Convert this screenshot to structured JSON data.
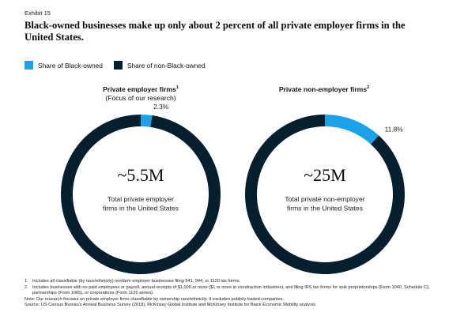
{
  "exhibit": "Exhibit 15",
  "title": "Black-owned businesses make up only about 2 percent of all private employer firms in the United States.",
  "legend": [
    {
      "label": "Share of Black-owned",
      "color": "#1aa3e8"
    },
    {
      "label": "Share of non-Black-owned",
      "color": "#061f2e"
    }
  ],
  "charts": [
    {
      "heading": "Private employer firms",
      "footnote_ref": "1",
      "subheading": "(Focus of our research)"
    },
    {
      "heading": "Private non-employer firms",
      "footnote_ref": "2",
      "subheading": ""
    }
  ],
  "chart_data": [
    {
      "type": "pie",
      "title": "Private employer firms",
      "labels": [
        "Share of Black-owned",
        "Share of non-Black-owned"
      ],
      "values": [
        2.3,
        97.7
      ],
      "value_label": "2.3%",
      "center_value": "~5.5M",
      "center_caption": [
        "Total private employer",
        "firms in the United States"
      ],
      "colors": [
        "#1aa3e8",
        "#061f2e"
      ]
    },
    {
      "type": "pie",
      "title": "Private non-employer firms",
      "labels": [
        "Share of Black-owned",
        "Share of non-Black-owned"
      ],
      "values": [
        11.8,
        88.2
      ],
      "value_label": "11.8%",
      "center_value": "~25M",
      "center_caption": [
        "Total private non-employer",
        "firms in the United States"
      ],
      "colors": [
        "#1aa3e8",
        "#061f2e"
      ]
    }
  ],
  "footer": {
    "notes": [
      {
        "num": "1.",
        "text": "Includes all classifiable (by race/ethnicity) nonfarm employer businesses filing 941, 944, or 1120 tax forms."
      },
      {
        "num": "2.",
        "text": "Includes businesses with no paid employees or payroll, annual receipts of $1,000 or more ($1 or more in construction industries), and filing IRS tax forms for sole proprietorships (Form 1040, Schedule C), partnerships (Form 1065), or corporations (Form 1120 series)."
      }
    ],
    "note": "Note: Our research focuses on private employer firms classifiable by ownership race/ethnicity. It excludes publicly traded companies.",
    "source": "Source: US Census Bureau's Annual Business Survey (2018), McKinsey Global Institute and McKinsey Institute for Black Economic Mobility analysis"
  }
}
